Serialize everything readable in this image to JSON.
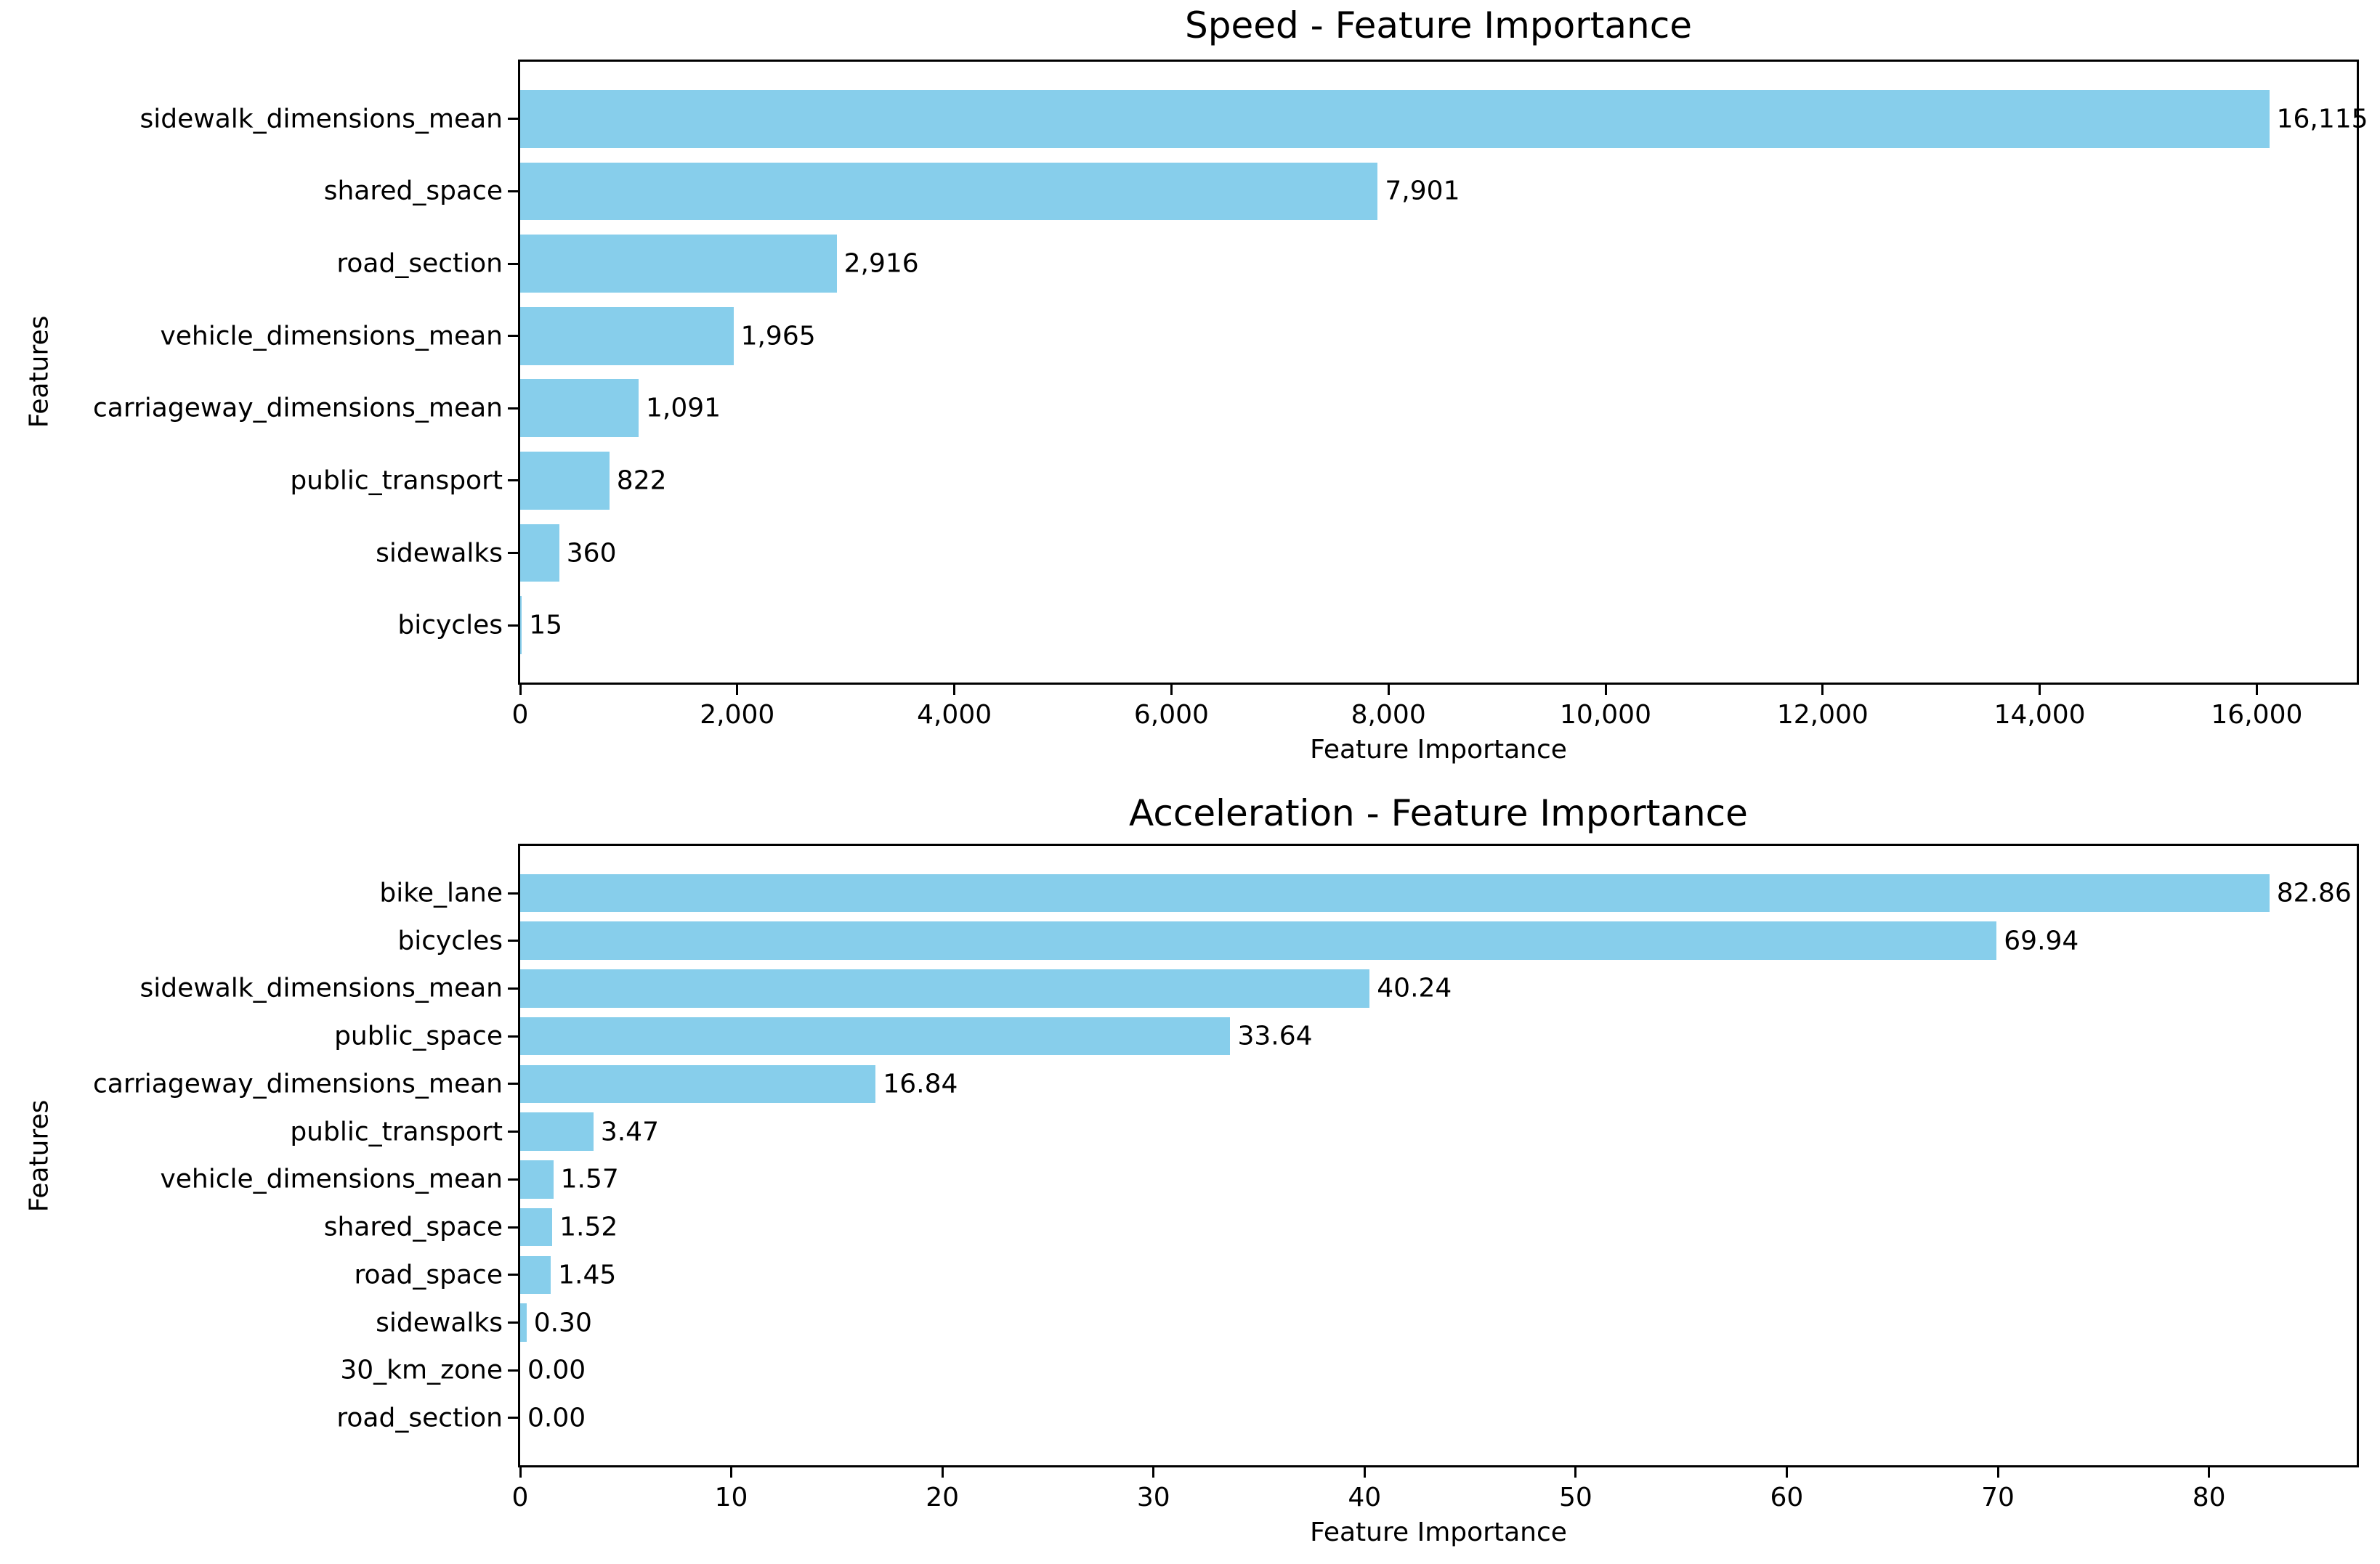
{
  "figure": {
    "background_color": "#ffffff",
    "bar_color": "#87ceeb",
    "axis_color": "#000000",
    "text_color": "#000000"
  },
  "chart_data": [
    {
      "type": "bar",
      "orientation": "horizontal",
      "title": "Speed - Feature Importance",
      "xlabel": "Feature Importance",
      "ylabel": "Features",
      "grid": false,
      "legend": false,
      "categories": [
        "sidewalk_dimensions_mean",
        "shared_space",
        "road_section",
        "vehicle_dimensions_mean",
        "carriageway_dimensions_mean",
        "public_transport",
        "sidewalks",
        "bicycles"
      ],
      "values": [
        16115,
        7901,
        2916,
        1965,
        1091,
        822,
        360,
        15
      ],
      "value_labels": [
        "16,115",
        "7,901",
        "2,916",
        "1,965",
        "1,091",
        "822",
        "360",
        "15"
      ],
      "xlim": [
        0,
        16921
      ],
      "xticks": [
        0,
        2000,
        4000,
        6000,
        8000,
        10000,
        12000,
        14000,
        16000
      ],
      "xtick_labels": [
        "0",
        "2,000",
        "4,000",
        "6,000",
        "8,000",
        "10,000",
        "12,000",
        "14,000",
        "16,000"
      ]
    },
    {
      "type": "bar",
      "orientation": "horizontal",
      "title": "Acceleration - Feature Importance",
      "xlabel": "Feature Importance",
      "ylabel": "Features",
      "grid": false,
      "legend": false,
      "categories": [
        "bike_lane",
        "bicycles",
        "sidewalk_dimensions_mean",
        "public_space",
        "carriageway_dimensions_mean",
        "public_transport",
        "vehicle_dimensions_mean",
        "shared_space",
        "road_space",
        "sidewalks",
        "30_km_zone",
        "road_section"
      ],
      "values": [
        82.86,
        69.94,
        40.24,
        33.64,
        16.84,
        3.47,
        1.57,
        1.52,
        1.45,
        0.3,
        0.0,
        0.0
      ],
      "value_labels": [
        "82.86",
        "69.94",
        "40.24",
        "33.64",
        "16.84",
        "3.47",
        "1.57",
        "1.52",
        "1.45",
        "0.30",
        "0.00",
        "0.00"
      ],
      "xlim": [
        0,
        87
      ],
      "xticks": [
        0,
        10,
        20,
        30,
        40,
        50,
        60,
        70,
        80
      ],
      "xtick_labels": [
        "0",
        "10",
        "20",
        "30",
        "40",
        "50",
        "60",
        "70",
        "80"
      ]
    }
  ]
}
